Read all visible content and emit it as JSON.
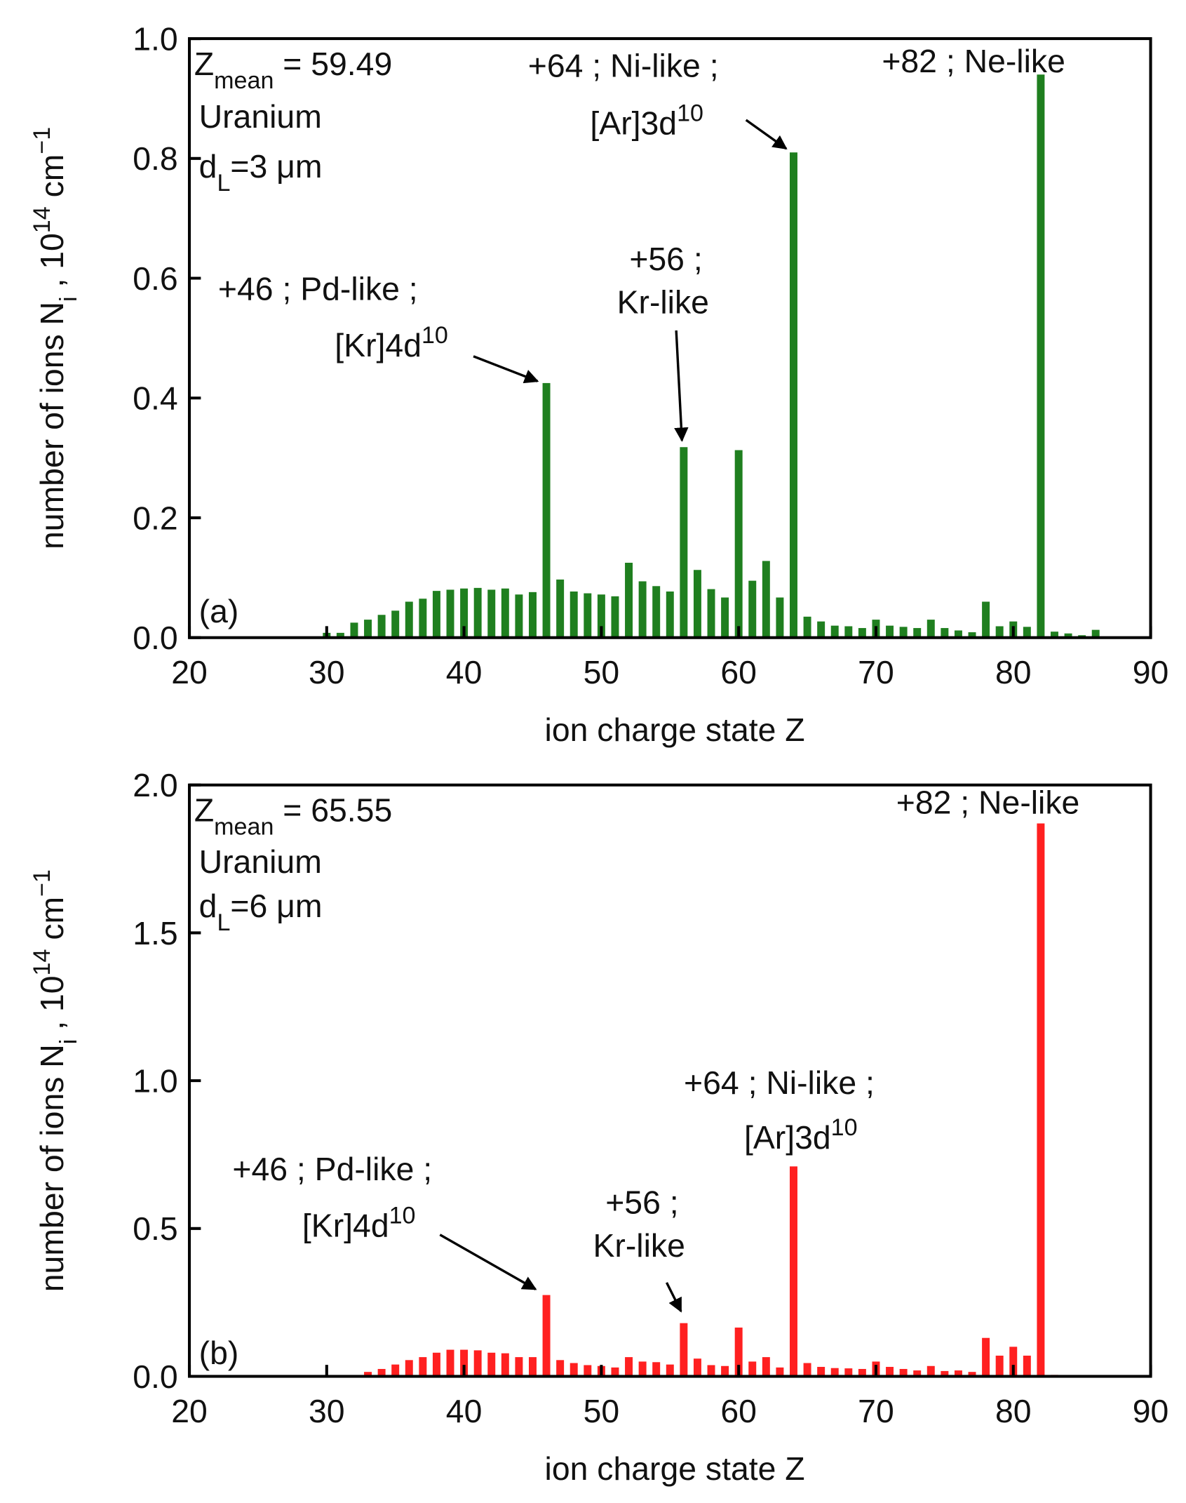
{
  "chart_data": [
    {
      "type": "bar",
      "color": "#1f7f1f",
      "xlabel": "ion charge state Z",
      "ylabel_parts": [
        {
          "text": "number of ions N"
        },
        {
          "text": "i",
          "shift": "sub"
        },
        {
          "text": " , 10"
        },
        {
          "text": "14",
          "shift": "super"
        },
        {
          "text": " cm"
        },
        {
          "text": "−1",
          "shift": "super"
        }
      ],
      "x": [
        30,
        31,
        32,
        33,
        34,
        35,
        36,
        37,
        38,
        39,
        40,
        41,
        42,
        43,
        44,
        45,
        46,
        47,
        48,
        49,
        50,
        51,
        52,
        53,
        54,
        55,
        56,
        57,
        58,
        59,
        60,
        61,
        62,
        63,
        64,
        65,
        66,
        67,
        68,
        69,
        70,
        71,
        72,
        73,
        74,
        75,
        76,
        77,
        78,
        79,
        80,
        81,
        82,
        83,
        84,
        85,
        86
      ],
      "values": [
        0.008,
        0.008,
        0.025,
        0.03,
        0.038,
        0.045,
        0.06,
        0.065,
        0.078,
        0.08,
        0.082,
        0.083,
        0.08,
        0.082,
        0.072,
        0.076,
        0.425,
        0.097,
        0.077,
        0.074,
        0.072,
        0.069,
        0.125,
        0.094,
        0.086,
        0.077,
        0.318,
        0.113,
        0.081,
        0.067,
        0.313,
        0.095,
        0.128,
        0.067,
        0.81,
        0.035,
        0.027,
        0.02,
        0.019,
        0.016,
        0.03,
        0.02,
        0.018,
        0.016,
        0.03,
        0.016,
        0.012,
        0.009,
        0.06,
        0.019,
        0.027,
        0.018,
        0.94,
        0.01,
        0.007,
        0.004,
        0.013
      ],
      "xlim": [
        20,
        90
      ],
      "xticks": [
        20,
        30,
        40,
        50,
        60,
        70,
        80,
        90
      ],
      "ylim": [
        0,
        1
      ],
      "yticks": [
        {
          "value": 0,
          "label": "0.0"
        },
        0.2,
        0.4,
        0.6,
        0.8,
        {
          "value": 1,
          "label": "1.0"
        }
      ],
      "annotations": [
        {
          "parts": [
            {
              "text": "Z"
            },
            {
              "text": "mean",
              "shift": "sub"
            },
            {
              "text": " = 59.49"
            }
          ]
        },
        {
          "parts": [
            {
              "text": "Uranium"
            }
          ]
        },
        {
          "parts": [
            {
              "text": "d"
            },
            {
              "text": "L",
              "shift": "sub"
            },
            {
              "text": "=3 μm"
            }
          ]
        },
        {
          "parts": [
            {
              "text": "(a)"
            }
          ]
        },
        {
          "parts": [
            {
              "text": "+46 ; Pd-like ;"
            }
          ]
        },
        {
          "parts": [
            {
              "text": "[Kr]4d"
            },
            {
              "text": "10",
              "shift": "super"
            }
          ]
        },
        {
          "parts": [
            {
              "text": "+56 ;"
            }
          ]
        },
        {
          "parts": [
            {
              "text": "Kr-like"
            }
          ]
        },
        {
          "parts": [
            {
              "text": "+64 ; Ni-like ;"
            }
          ]
        },
        {
          "parts": [
            {
              "text": "[Ar]3d"
            },
            {
              "text": "10",
              "shift": "super"
            }
          ]
        },
        {
          "parts": [
            {
              "text": "+82 ; Ne-like"
            }
          ]
        }
      ]
    },
    {
      "type": "bar",
      "color": "#ff2020",
      "xlabel": "ion charge state Z",
      "ylabel_parts": [
        {
          "text": "number of ions N"
        },
        {
          "text": "i",
          "shift": "sub"
        },
        {
          "text": " , 10"
        },
        {
          "text": "14",
          "shift": "super"
        },
        {
          "text": " cm"
        },
        {
          "text": "−1",
          "shift": "super"
        }
      ],
      "x": [
        33,
        34,
        35,
        36,
        37,
        38,
        39,
        40,
        41,
        42,
        43,
        44,
        45,
        46,
        47,
        48,
        49,
        50,
        51,
        52,
        53,
        54,
        55,
        56,
        57,
        58,
        59,
        60,
        61,
        62,
        63,
        64,
        65,
        66,
        67,
        68,
        69,
        70,
        71,
        72,
        73,
        74,
        75,
        76,
        77,
        78,
        79,
        80,
        81,
        82,
        83
      ],
      "values": [
        0.015,
        0.025,
        0.04,
        0.055,
        0.065,
        0.08,
        0.09,
        0.09,
        0.088,
        0.08,
        0.078,
        0.065,
        0.065,
        0.275,
        0.055,
        0.045,
        0.038,
        0.035,
        0.03,
        0.065,
        0.05,
        0.048,
        0.04,
        0.18,
        0.06,
        0.038,
        0.035,
        0.165,
        0.05,
        0.065,
        0.03,
        0.71,
        0.045,
        0.032,
        0.028,
        0.027,
        0.025,
        0.05,
        0.032,
        0.025,
        0.02,
        0.035,
        0.018,
        0.02,
        0.015,
        0.13,
        0.07,
        0.1,
        0.07,
        1.87,
        0.005
      ],
      "xlim": [
        20,
        90
      ],
      "xticks": [
        20,
        30,
        40,
        50,
        60,
        70,
        80,
        90
      ],
      "ylim": [
        0,
        2
      ],
      "yticks": [
        {
          "value": 0,
          "label": "0.0"
        },
        0.5,
        {
          "value": 1,
          "label": "1.0"
        },
        1.5,
        {
          "value": 2,
          "label": "2.0"
        }
      ],
      "annotations": [
        {
          "parts": [
            {
              "text": "Z"
            },
            {
              "text": "mean",
              "shift": "sub"
            },
            {
              "text": " = 65.55"
            }
          ]
        },
        {
          "parts": [
            {
              "text": "Uranium"
            }
          ]
        },
        {
          "parts": [
            {
              "text": "d"
            },
            {
              "text": "L",
              "shift": "sub"
            },
            {
              "text": "=6 μm"
            }
          ]
        },
        {
          "parts": [
            {
              "text": "(b)"
            }
          ]
        },
        {
          "parts": [
            {
              "text": "+82 ; Ne-like"
            }
          ]
        },
        {
          "parts": [
            {
              "text": "+64 ; Ni-like ;"
            }
          ]
        },
        {
          "parts": [
            {
              "text": "[Ar]3d"
            },
            {
              "text": "10",
              "shift": "super"
            }
          ]
        },
        {
          "parts": [
            {
              "text": "+46 ; Pd-like ;"
            }
          ]
        },
        {
          "parts": [
            {
              "text": "[Kr]4d"
            },
            {
              "text": "10",
              "shift": "super"
            }
          ]
        },
        {
          "parts": [
            {
              "text": "+56 ;"
            }
          ]
        },
        {
          "parts": [
            {
              "text": "Kr-like"
            }
          ]
        }
      ]
    }
  ]
}
